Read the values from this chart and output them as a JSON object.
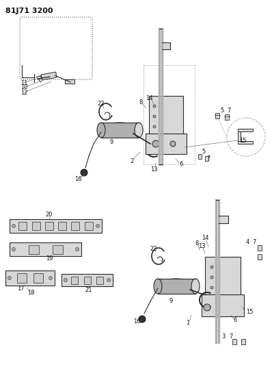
{
  "title": "81J71 3200",
  "bg_color": "#ffffff",
  "fig_width": 3.98,
  "fig_height": 5.33,
  "dpi": 100,
  "line_color": "#2a2a2a",
  "gray1": "#b0b0b0",
  "gray2": "#d8d8d8",
  "gray3": "#888888"
}
